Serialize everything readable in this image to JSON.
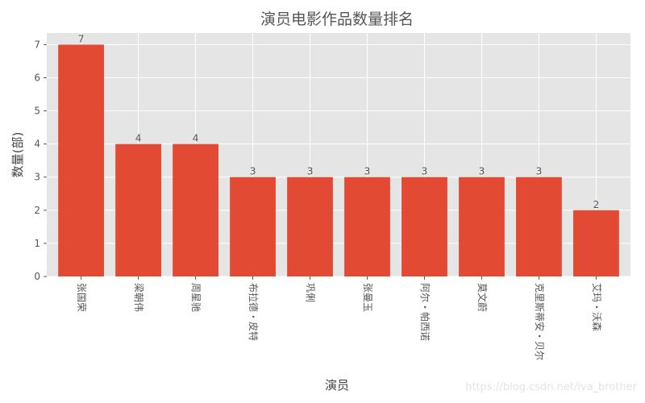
{
  "chart_data": {
    "type": "bar",
    "title": "演员电影作品数量排名",
    "xlabel": "演员",
    "ylabel": "数量(部)",
    "categories": [
      "张国荣",
      "梁朝伟",
      "周星驰",
      "布拉德・皮特",
      "巩俐",
      "张曼玉",
      "阿尔・帕西诺",
      "莫文蔚",
      "克里斯蒂安・贝尔",
      "艾玛・沃森"
    ],
    "values": [
      7,
      4,
      4,
      3,
      3,
      3,
      3,
      3,
      3,
      2
    ],
    "ylim": [
      0,
      7.35
    ],
    "yticks": [
      0,
      1,
      2,
      3,
      4,
      5,
      6,
      7
    ],
    "grid": true,
    "bar_color": "#E24A33",
    "plot_background": "#E5E5E5",
    "grid_color": "#FFFFFF"
  },
  "watermark": "https://blog.csdn.net/iva_brother"
}
